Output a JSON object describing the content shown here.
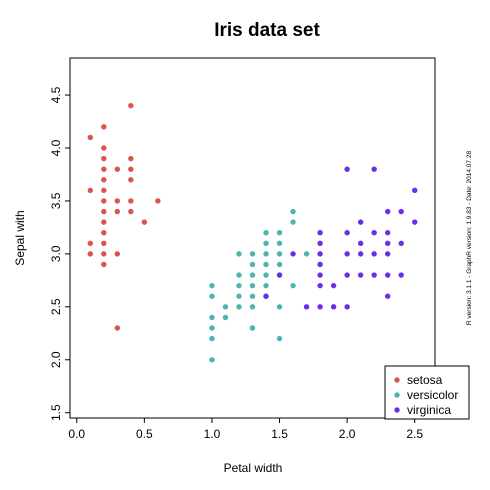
{
  "chart_data": {
    "type": "scatter",
    "title": "Iris data set",
    "xlabel": "Petal width",
    "ylabel": "Sepal with",
    "xlim": [
      -0.05,
      2.65
    ],
    "ylim": [
      1.45,
      4.85
    ],
    "xticks": [
      "0.0",
      "0.5",
      "1.0",
      "1.5",
      "2.0",
      "2.5"
    ],
    "yticks": [
      "1.5",
      "2.0",
      "2.5",
      "3.0",
      "3.5",
      "4.0",
      "4.5"
    ],
    "grid": false,
    "legend_position": "bottom-right",
    "side_note": "R version: 3.1.1 - GraphR version: 1.9.83 - Date: 2014.07.28",
    "series": [
      {
        "name": "setosa",
        "color": "#d9534f",
        "points": [
          [
            0.1,
            4.1
          ],
          [
            0.1,
            3.6
          ],
          [
            0.1,
            3.1
          ],
          [
            0.1,
            3.0
          ],
          [
            0.2,
            4.2
          ],
          [
            0.2,
            4.0
          ],
          [
            0.2,
            3.9
          ],
          [
            0.2,
            3.8
          ],
          [
            0.2,
            3.7
          ],
          [
            0.2,
            3.6
          ],
          [
            0.2,
            3.5
          ],
          [
            0.2,
            3.4
          ],
          [
            0.2,
            3.3
          ],
          [
            0.2,
            3.2
          ],
          [
            0.2,
            3.1
          ],
          [
            0.2,
            3.0
          ],
          [
            0.2,
            2.9
          ],
          [
            0.3,
            3.8
          ],
          [
            0.3,
            3.5
          ],
          [
            0.3,
            3.4
          ],
          [
            0.3,
            3.0
          ],
          [
            0.3,
            2.3
          ],
          [
            0.4,
            4.4
          ],
          [
            0.4,
            3.9
          ],
          [
            0.4,
            3.8
          ],
          [
            0.4,
            3.7
          ],
          [
            0.4,
            3.5
          ],
          [
            0.4,
            3.4
          ],
          [
            0.5,
            3.3
          ],
          [
            0.6,
            3.5
          ]
        ]
      },
      {
        "name": "versicolor",
        "color": "#4fb3b0",
        "points": [
          [
            1.0,
            2.7
          ],
          [
            1.0,
            2.6
          ],
          [
            1.0,
            2.4
          ],
          [
            1.0,
            2.3
          ],
          [
            1.0,
            2.2
          ],
          [
            1.0,
            2.0
          ],
          [
            1.1,
            2.5
          ],
          [
            1.1,
            2.4
          ],
          [
            1.2,
            3.0
          ],
          [
            1.2,
            2.8
          ],
          [
            1.2,
            2.7
          ],
          [
            1.2,
            2.6
          ],
          [
            1.2,
            2.5
          ],
          [
            1.3,
            3.0
          ],
          [
            1.3,
            2.9
          ],
          [
            1.3,
            2.8
          ],
          [
            1.3,
            2.7
          ],
          [
            1.3,
            2.6
          ],
          [
            1.3,
            2.5
          ],
          [
            1.3,
            2.3
          ],
          [
            1.4,
            3.2
          ],
          [
            1.4,
            3.1
          ],
          [
            1.4,
            3.0
          ],
          [
            1.4,
            2.9
          ],
          [
            1.4,
            2.8
          ],
          [
            1.4,
            2.7
          ],
          [
            1.4,
            2.6
          ],
          [
            1.5,
            3.2
          ],
          [
            1.5,
            3.1
          ],
          [
            1.5,
            3.0
          ],
          [
            1.5,
            2.9
          ],
          [
            1.5,
            2.8
          ],
          [
            1.5,
            2.5
          ],
          [
            1.5,
            2.2
          ],
          [
            1.6,
            3.4
          ],
          [
            1.6,
            3.3
          ],
          [
            1.6,
            2.7
          ],
          [
            1.7,
            3.0
          ]
        ]
      },
      {
        "name": "virginica",
        "color": "#6a2ee8",
        "points": [
          [
            1.4,
            2.6
          ],
          [
            1.5,
            2.8
          ],
          [
            1.6,
            3.0
          ],
          [
            1.7,
            2.5
          ],
          [
            1.8,
            3.2
          ],
          [
            1.8,
            3.1
          ],
          [
            1.8,
            3.0
          ],
          [
            1.8,
            2.9
          ],
          [
            1.8,
            2.8
          ],
          [
            1.8,
            2.7
          ],
          [
            1.8,
            2.5
          ],
          [
            1.9,
            2.7
          ],
          [
            1.9,
            2.5
          ],
          [
            2.0,
            3.8
          ],
          [
            2.0,
            3.2
          ],
          [
            2.0,
            3.0
          ],
          [
            2.0,
            2.8
          ],
          [
            2.0,
            2.5
          ],
          [
            2.1,
            3.3
          ],
          [
            2.1,
            3.1
          ],
          [
            2.1,
            3.0
          ],
          [
            2.1,
            2.8
          ],
          [
            2.2,
            3.8
          ],
          [
            2.2,
            3.2
          ],
          [
            2.2,
            3.0
          ],
          [
            2.2,
            2.8
          ],
          [
            2.3,
            3.4
          ],
          [
            2.3,
            3.2
          ],
          [
            2.3,
            3.1
          ],
          [
            2.3,
            3.0
          ],
          [
            2.3,
            2.8
          ],
          [
            2.3,
            2.6
          ],
          [
            2.4,
            3.4
          ],
          [
            2.4,
            3.1
          ],
          [
            2.4,
            2.8
          ],
          [
            2.5,
            3.6
          ],
          [
            2.5,
            3.3
          ]
        ]
      }
    ]
  }
}
